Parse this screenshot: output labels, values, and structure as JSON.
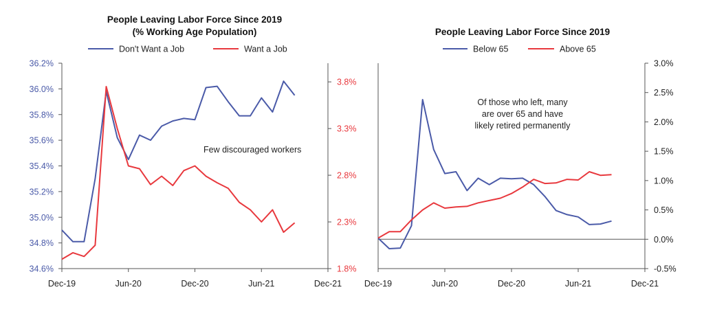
{
  "colors": {
    "blue": "#4a5aa8",
    "red": "#e8383d",
    "axis": "#555555",
    "text": "#222222"
  },
  "chart_data": [
    {
      "type": "line",
      "title": "People Leaving Labor Force Since 2019",
      "subtitle": "(% Working Age Population)",
      "x": [
        "2019-12",
        "2020-01",
        "2020-02",
        "2020-03",
        "2020-04",
        "2020-05",
        "2020-06",
        "2020-07",
        "2020-08",
        "2020-09",
        "2020-10",
        "2020-11",
        "2020-12",
        "2021-01",
        "2021-02",
        "2021-03",
        "2021-04",
        "2021-05",
        "2021-06",
        "2021-07",
        "2021-08",
        "2021-09"
      ],
      "x_ticks": [
        "Dec-19",
        "Jun-20",
        "Dec-20",
        "Jun-21",
        "Dec-21"
      ],
      "x_range": [
        "2019-12",
        "2021-12"
      ],
      "legend_position": "top",
      "grid": false,
      "series": [
        {
          "name": "Don't Want a Job",
          "axis": "left",
          "color": "#4a5aa8",
          "values": [
            34.9,
            34.81,
            34.81,
            35.3,
            35.98,
            35.62,
            35.45,
            35.64,
            35.6,
            35.71,
            35.75,
            35.77,
            35.76,
            36.01,
            36.02,
            35.9,
            35.79,
            35.79,
            35.93,
            35.82,
            36.06,
            35.95
          ]
        },
        {
          "name": "Want a Job",
          "axis": "right",
          "color": "#e8383d",
          "values": [
            1.9,
            1.97,
            1.93,
            2.05,
            3.75,
            3.3,
            2.9,
            2.87,
            2.7,
            2.79,
            2.69,
            2.85,
            2.9,
            2.79,
            2.72,
            2.66,
            2.51,
            2.43,
            2.3,
            2.43,
            2.19,
            2.29
          ]
        }
      ],
      "y_left": {
        "range": [
          34.6,
          36.2
        ],
        "ticks": [
          "34.6%",
          "34.8%",
          "35.0%",
          "35.2%",
          "35.4%",
          "35.6%",
          "35.8%",
          "36.0%",
          "36.2%"
        ],
        "color": "#4a5aa8"
      },
      "y_right": {
        "range": [
          1.8,
          4.0
        ],
        "ticks": [
          "1.8%",
          "2.3%",
          "2.8%",
          "3.3%",
          "3.8%"
        ],
        "color": "#e8383d"
      },
      "annotation": "Few discouraged workers"
    },
    {
      "type": "line",
      "title": "People Leaving Labor Force Since 2019",
      "x": [
        "2019-12",
        "2020-01",
        "2020-02",
        "2020-03",
        "2020-04",
        "2020-05",
        "2020-06",
        "2020-07",
        "2020-08",
        "2020-09",
        "2020-10",
        "2020-11",
        "2020-12",
        "2021-01",
        "2021-02",
        "2021-03",
        "2021-04",
        "2021-05",
        "2021-06",
        "2021-07",
        "2021-08",
        "2021-09"
      ],
      "x_ticks": [
        "Dec-19",
        "Jun-20",
        "Dec-20",
        "Jun-21",
        "Dec-21"
      ],
      "x_range": [
        "2019-12",
        "2021-12"
      ],
      "legend_position": "top",
      "grid": false,
      "series": [
        {
          "name": "Below 65",
          "color": "#4a5aa8",
          "values": [
            0.02,
            -0.16,
            -0.15,
            0.23,
            2.38,
            1.53,
            1.12,
            1.15,
            0.83,
            1.04,
            0.93,
            1.04,
            1.03,
            1.04,
            0.93,
            0.73,
            0.49,
            0.42,
            0.38,
            0.25,
            0.26,
            0.31
          ]
        },
        {
          "name": "Above 65",
          "color": "#e8383d",
          "values": [
            0.02,
            0.13,
            0.13,
            0.33,
            0.5,
            0.62,
            0.53,
            0.55,
            0.56,
            0.62,
            0.66,
            0.7,
            0.78,
            0.89,
            1.02,
            0.95,
            0.96,
            1.02,
            1.01,
            1.15,
            1.09,
            1.1
          ]
        }
      ],
      "y_right": {
        "range": [
          -0.5,
          3.0
        ],
        "ticks": [
          "-0.5%",
          "0.0%",
          "0.5%",
          "1.0%",
          "1.5%",
          "2.0%",
          "2.5%",
          "3.0%"
        ]
      },
      "annotation": [
        "Of those who left, many",
        "are over 65 and have",
        "likely retired permanently"
      ]
    }
  ]
}
